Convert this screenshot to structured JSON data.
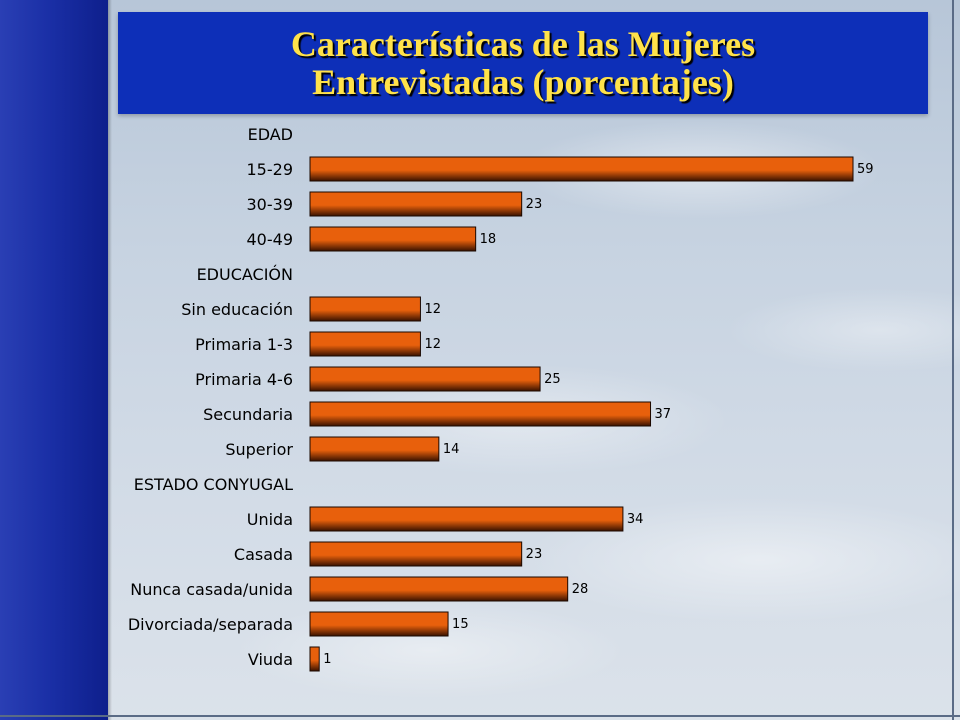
{
  "title_lines": [
    "Características de las Mujeres",
    "Entrevistadas (porcentajes)"
  ],
  "colors": {
    "bar": "#e8600c",
    "bar_dark": "#3a1200",
    "title_bg": "#0d2fb8",
    "title_text": "#ffe24a",
    "side_bar": "#1a2fa6"
  },
  "chart_data": {
    "type": "bar",
    "orientation": "horizontal",
    "title": "Características de las Mujeres Entrevistadas (porcentajes)",
    "xlim": [
      0,
      60
    ],
    "grid": false,
    "legend": "none",
    "rows": [
      {
        "label": "EDAD",
        "group": true
      },
      {
        "label": "15-29",
        "value": 59
      },
      {
        "label": "30-39",
        "value": 23
      },
      {
        "label": "40-49",
        "value": 18
      },
      {
        "label": "EDUCACIÓN",
        "group": true
      },
      {
        "label": "Sin educación",
        "value": 12
      },
      {
        "label": "Primaria 1-3",
        "value": 12
      },
      {
        "label": "Primaria 4-6",
        "value": 25
      },
      {
        "label": "Secundaria",
        "value": 37
      },
      {
        "label": "Superior",
        "value": 14
      },
      {
        "label": "ESTADO CONYUGAL",
        "group": true
      },
      {
        "label": "Unida",
        "value": 34
      },
      {
        "label": "Casada",
        "value": 23
      },
      {
        "label": "Nunca casada/unida",
        "value": 28
      },
      {
        "label": "Divorciada/separada",
        "value": 15
      },
      {
        "label": "Viuda",
        "value": 1
      }
    ]
  }
}
